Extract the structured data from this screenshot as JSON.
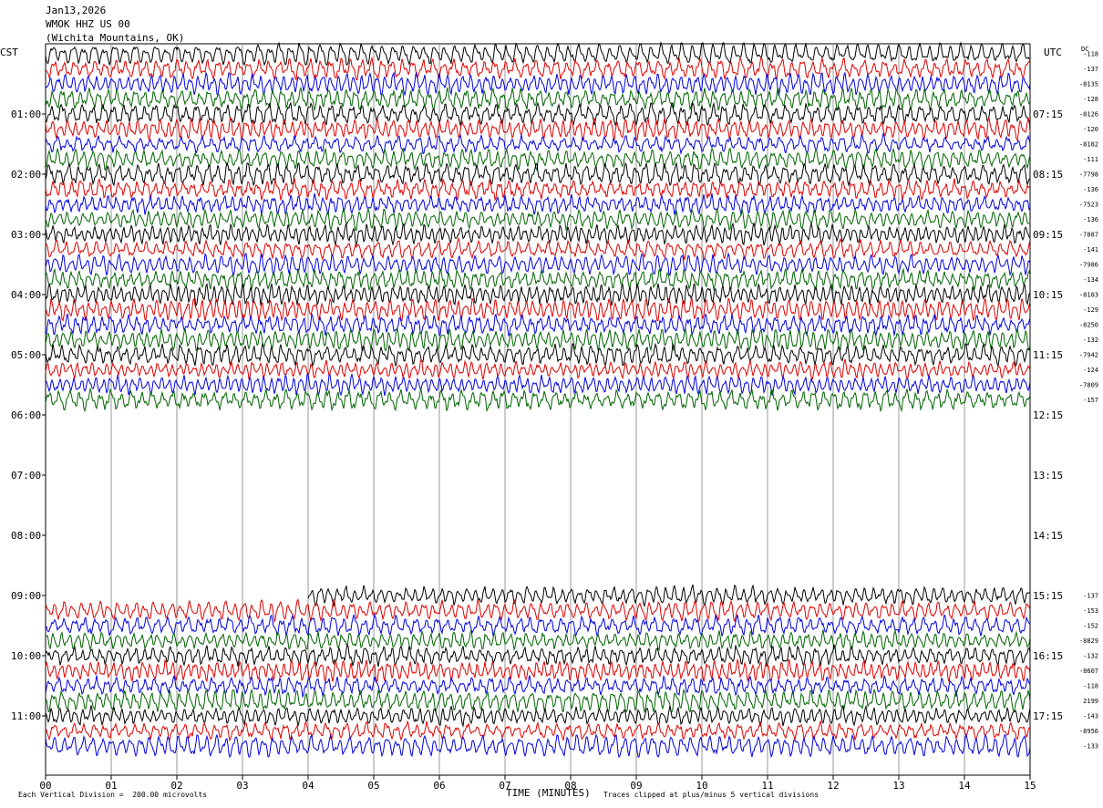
{
  "header": {
    "date": "Jan13,2026",
    "station": "WMOK HHZ US 00",
    "location": "(Wichita Mountains, OK)"
  },
  "axis_labels": {
    "left_tz": "CST",
    "right_tz": "UTC",
    "dc": "DC",
    "xlabel": "TIME (MINUTES)"
  },
  "footer": {
    "scale_note": "Each Vertical Division =  200.00 microvolts",
    "clip_note": "Traces clipped at plus/minus 5 vertical divisions"
  },
  "colors": {
    "trace_cycle": [
      "#000000",
      "#e00000",
      "#0000e0",
      "#006400"
    ],
    "grid": "#808080"
  },
  "chart_data": {
    "type": "line",
    "title": "Jan13,2026 WMOK HHZ US 00 (Wichita Mountains, OK)",
    "xlabel": "TIME (MINUTES)",
    "xlim": [
      0,
      15
    ],
    "x_ticks": [
      "00",
      "01",
      "02",
      "03",
      "04",
      "05",
      "06",
      "07",
      "08",
      "09",
      "10",
      "11",
      "12",
      "13",
      "14",
      "15"
    ],
    "left_hour_labels": [
      "01:00",
      "02:00",
      "03:00",
      "04:00",
      "05:00",
      "06:00",
      "07:00",
      "08:00",
      "09:00",
      "10:00",
      "11:00"
    ],
    "right_hour_labels": [
      "07:15",
      "08:15",
      "09:15",
      "10:15",
      "11:15",
      "12:15",
      "13:15",
      "14:15",
      "15:15",
      "16:15",
      "17:15"
    ],
    "rows_per_hour": 4,
    "row_minutes": 15,
    "first_row_hour": 0,
    "segments": [
      {
        "start_row": 0,
        "dc": [
          "-118",
          "-137",
          "-8135",
          "-128",
          "-8126",
          "-120",
          "-8182",
          "-111",
          "-7798",
          "-136",
          "-7523",
          "-136",
          "-7887",
          "-141",
          "-7986",
          "-134",
          "-8183",
          "-129",
          "-8250",
          "-132",
          "-7942",
          "-124",
          "-7809",
          "-157"
        ]
      },
      {
        "start_row": 36,
        "dc": [
          "-137",
          "-153",
          "-152",
          "-8829",
          "-132",
          "-8607",
          "-118",
          "2199",
          "-143",
          "-8956",
          "-133"
        ],
        "first_row_start_minute": 4.0
      }
    ],
    "data_gap": {
      "from": "06:00",
      "to": "09:00"
    },
    "grid": "vertical minute lines",
    "amplitude_unit": "microvolts"
  }
}
